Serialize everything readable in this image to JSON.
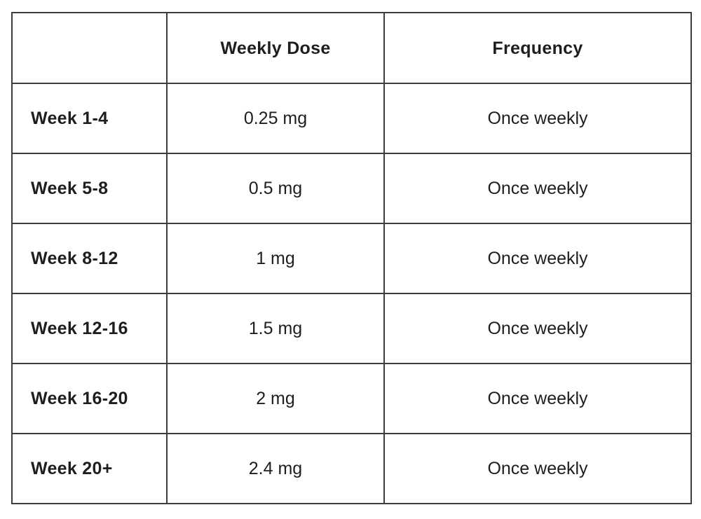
{
  "colors": {
    "accent_row_header_bg": "#f6dea4",
    "border": "#3d3d3d",
    "text": "#1e1e1e",
    "cell_bg": "#ffffff"
  },
  "table": {
    "columns": [
      "",
      "Weekly Dose",
      "Frequency"
    ],
    "rows": [
      {
        "label": "Week 1-4",
        "dose": "0.25 mg",
        "frequency": "Once weekly"
      },
      {
        "label": "Week 5-8",
        "dose": "0.5 mg",
        "frequency": "Once weekly"
      },
      {
        "label": "Week 8-12",
        "dose": "1 mg",
        "frequency": "Once weekly"
      },
      {
        "label": "Week 12-16",
        "dose": "1.5 mg",
        "frequency": "Once weekly"
      },
      {
        "label": "Week 16-20",
        "dose": "2 mg",
        "frequency": "Once weekly"
      },
      {
        "label": "Week 20+",
        "dose": "2.4 mg",
        "frequency": "Once weekly"
      }
    ]
  },
  "chart_data": {
    "type": "table",
    "title": "",
    "columns": [
      "",
      "Weekly Dose",
      "Frequency"
    ],
    "rows": [
      [
        "Week 1-4",
        "0.25 mg",
        "Once weekly"
      ],
      [
        "Week 5-8",
        "0.5 mg",
        "Once weekly"
      ],
      [
        "Week 8-12",
        "1 mg",
        "Once weekly"
      ],
      [
        "Week 12-16",
        "1.5 mg",
        "Once weekly"
      ],
      [
        "Week 16-20",
        "2 mg",
        "Once weekly"
      ],
      [
        "Week 20+",
        "2.4 mg",
        "Once weekly"
      ]
    ],
    "dose_values_mg": [
      0.25,
      0.5,
      1,
      1.5,
      2,
      2.4
    ]
  }
}
